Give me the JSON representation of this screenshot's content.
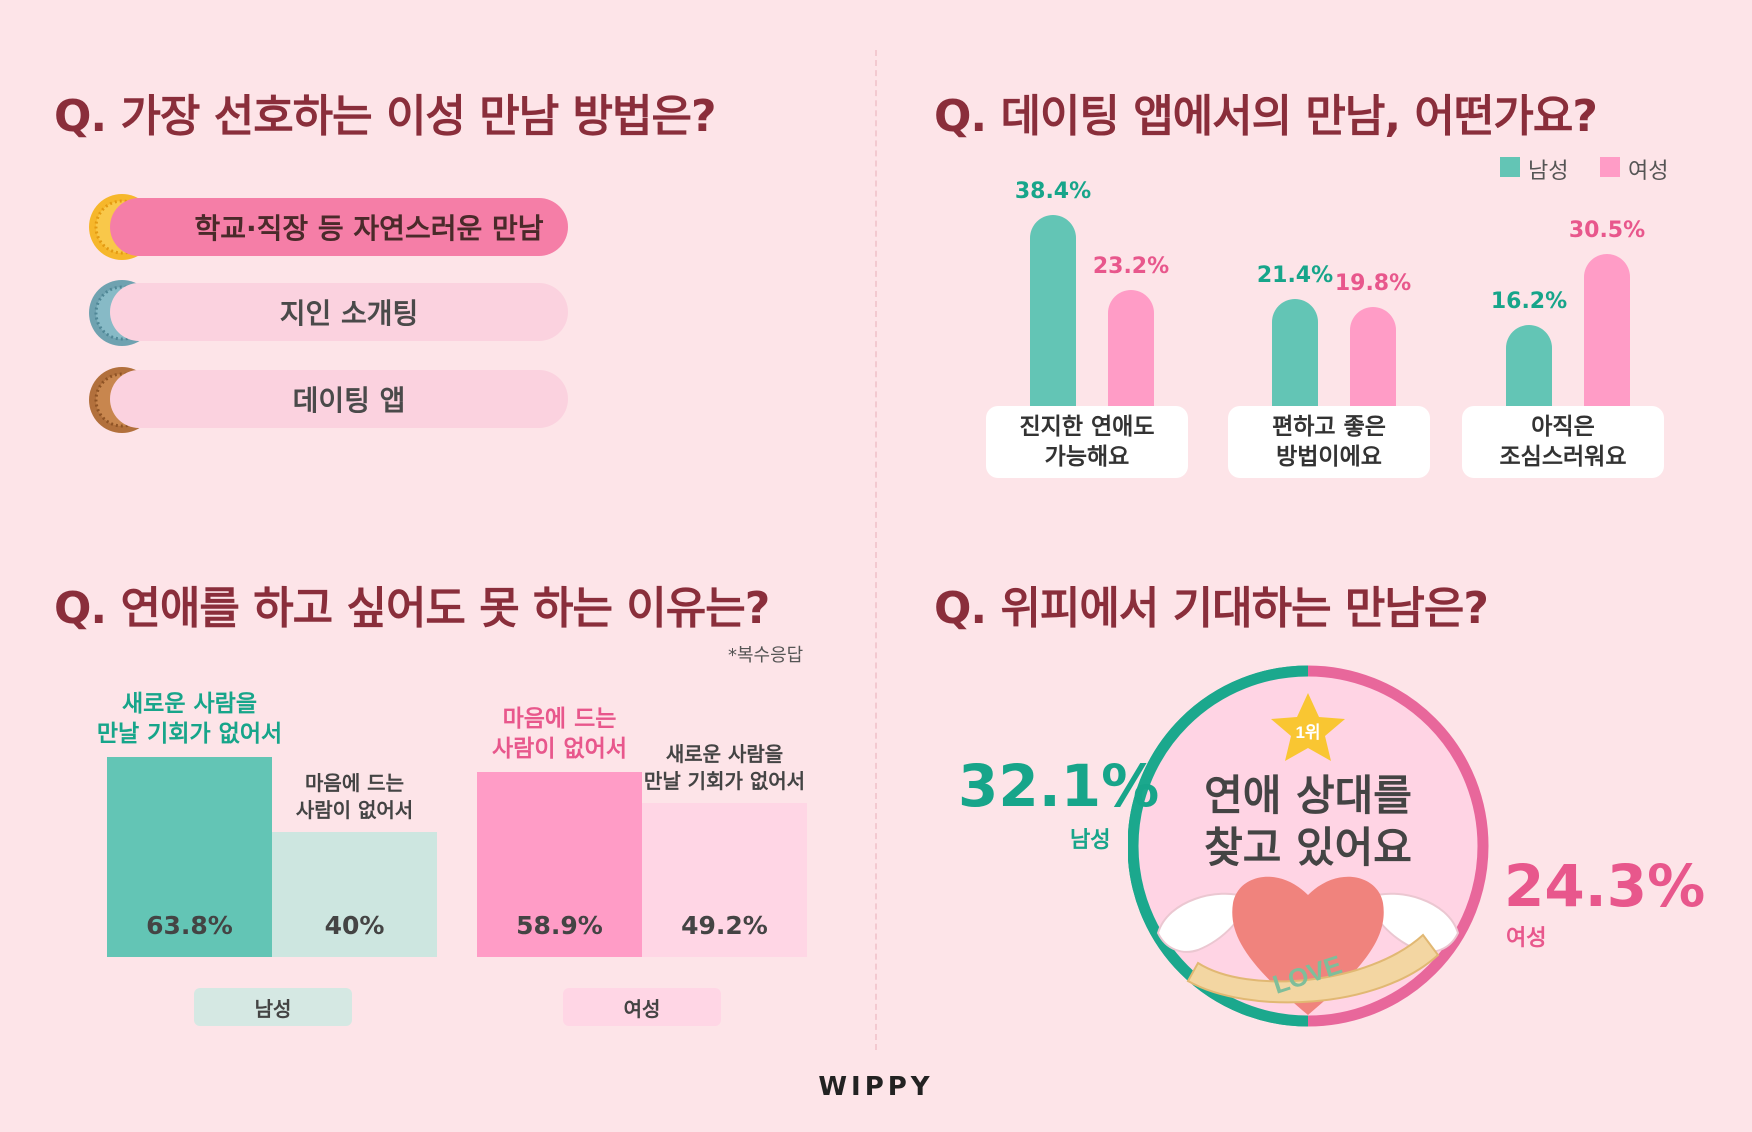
{
  "q1": {
    "title": "Q. 가장 선호하는 이성 만남 방법은?",
    "ranks": [
      {
        "num": "1",
        "label": "학교·직장 등 자연스러운 만남"
      },
      {
        "num": "2",
        "label": "지인 소개팅"
      },
      {
        "num": "3",
        "label": "데이팅 앱"
      }
    ]
  },
  "q2": {
    "title": "Q. 데이팅 앱에서의 만남, 어떤가요?",
    "legend_male": "남성",
    "legend_female": "여성",
    "colors": {
      "male": "#63C5B5",
      "female": "#FF9CC6",
      "male_text": "#17A58A",
      "female_text": "#E8578C"
    }
  },
  "q3": {
    "title": "Q. 연애를 하고 싶어도 못 하는 이유는?",
    "note": "*복수응답",
    "male_tag": "남성",
    "female_tag": "여성"
  },
  "q4": {
    "title": "Q. 위피에서 기대하는 만남은?",
    "rank_badge": "1위",
    "center_line1": "연애 상대를",
    "center_line2": "찾고 있어요",
    "male_value": "32.1%",
    "male_label": "남성",
    "female_value": "24.3%",
    "female_label": "여성",
    "love_text": "LOVE"
  },
  "brand": "WIPPY",
  "chart_data": [
    {
      "type": "bar",
      "title": "Q. 데이팅 앱에서의 만남, 어떤가요?",
      "categories": [
        "진지한 연애도 가능해요",
        "편하고 좋은 방법이에요",
        "아직은 조심스러워요"
      ],
      "category_lines": [
        [
          "진지한 연애도",
          "가능해요"
        ],
        [
          "편하고 좋은",
          "방법이에요"
        ],
        [
          "아직은",
          "조심스러워요"
        ]
      ],
      "series": [
        {
          "name": "남성",
          "values": [
            38.4,
            21.4,
            16.2
          ]
        },
        {
          "name": "여성",
          "values": [
            23.2,
            19.8,
            30.5
          ]
        }
      ],
      "unit": "%",
      "legend_position": "top-right"
    },
    {
      "type": "bar",
      "title": "Q. 연애를 하고 싶어도 못 하는 이유는?",
      "note": "*복수응답",
      "groups": [
        {
          "name": "남성",
          "bars": [
            {
              "label_lines": [
                "새로운 사람을",
                "만날 기회가 없어서"
              ],
              "value": 63.8,
              "display": "63.8%"
            },
            {
              "label_lines": [
                "마음에 드는",
                "사람이 없어서"
              ],
              "value": 40,
              "display": "40%"
            }
          ]
        },
        {
          "name": "여성",
          "bars": [
            {
              "label_lines": [
                "마음에 드는",
                "사람이 없어서"
              ],
              "value": 58.9,
              "display": "58.9%"
            },
            {
              "label_lines": [
                "새로운 사람을",
                "만날 기회가 없어서"
              ],
              "value": 49.2,
              "display": "49.2%"
            }
          ]
        }
      ],
      "unit": "%"
    },
    {
      "type": "pie",
      "title": "Q. 위피에서 기대하는 만남은?",
      "categories": [
        "남성",
        "여성"
      ],
      "values": [
        32.1,
        24.3
      ],
      "unit": "%"
    }
  ]
}
